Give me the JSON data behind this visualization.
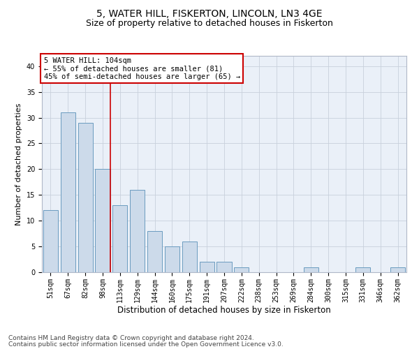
{
  "title": "5, WATER HILL, FISKERTON, LINCOLN, LN3 4GE",
  "subtitle": "Size of property relative to detached houses in Fiskerton",
  "xlabel": "Distribution of detached houses by size in Fiskerton",
  "ylabel": "Number of detached properties",
  "categories": [
    "51sqm",
    "67sqm",
    "82sqm",
    "98sqm",
    "113sqm",
    "129sqm",
    "144sqm",
    "160sqm",
    "175sqm",
    "191sqm",
    "207sqm",
    "222sqm",
    "238sqm",
    "253sqm",
    "269sqm",
    "284sqm",
    "300sqm",
    "315sqm",
    "331sqm",
    "346sqm",
    "362sqm"
  ],
  "values": [
    12,
    31,
    29,
    20,
    13,
    16,
    8,
    5,
    6,
    2,
    2,
    1,
    0,
    0,
    0,
    1,
    0,
    0,
    1,
    0,
    1
  ],
  "bar_color": "#ccdaea",
  "bar_edge_color": "#6a9bbf",
  "vline_x": 3.43,
  "vline_color": "#cc0000",
  "annotation_text": "5 WATER HILL: 104sqm\n← 55% of detached houses are smaller (81)\n45% of semi-detached houses are larger (65) →",
  "annotation_box_color": "#ffffff",
  "annotation_box_edge": "#cc0000",
  "ylim": [
    0,
    42
  ],
  "yticks": [
    0,
    5,
    10,
    15,
    20,
    25,
    30,
    35,
    40
  ],
  "grid_color": "#c8d0dc",
  "bg_color": "#eaf0f8",
  "footer_line1": "Contains HM Land Registry data © Crown copyright and database right 2024.",
  "footer_line2": "Contains public sector information licensed under the Open Government Licence v3.0.",
  "title_fontsize": 10,
  "subtitle_fontsize": 9,
  "xlabel_fontsize": 8.5,
  "ylabel_fontsize": 8,
  "tick_fontsize": 7,
  "annotation_fontsize": 7.5,
  "footer_fontsize": 6.5
}
